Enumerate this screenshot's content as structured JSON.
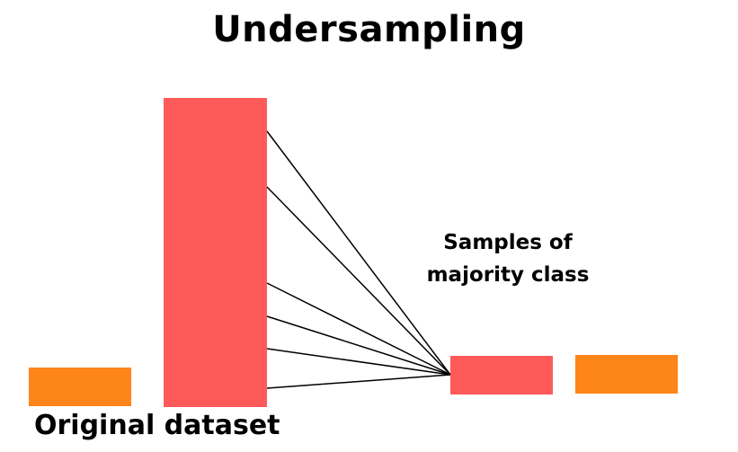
{
  "title": "Undersampling",
  "labels": {
    "majority_samples_line1": "Samples of",
    "majority_samples_line2": "majority class",
    "original_dataset": "Original dataset"
  },
  "colors": {
    "majority": "#ff5a5a",
    "minority": "#fd8519",
    "connector": "#000000"
  },
  "connector_count": 6
}
